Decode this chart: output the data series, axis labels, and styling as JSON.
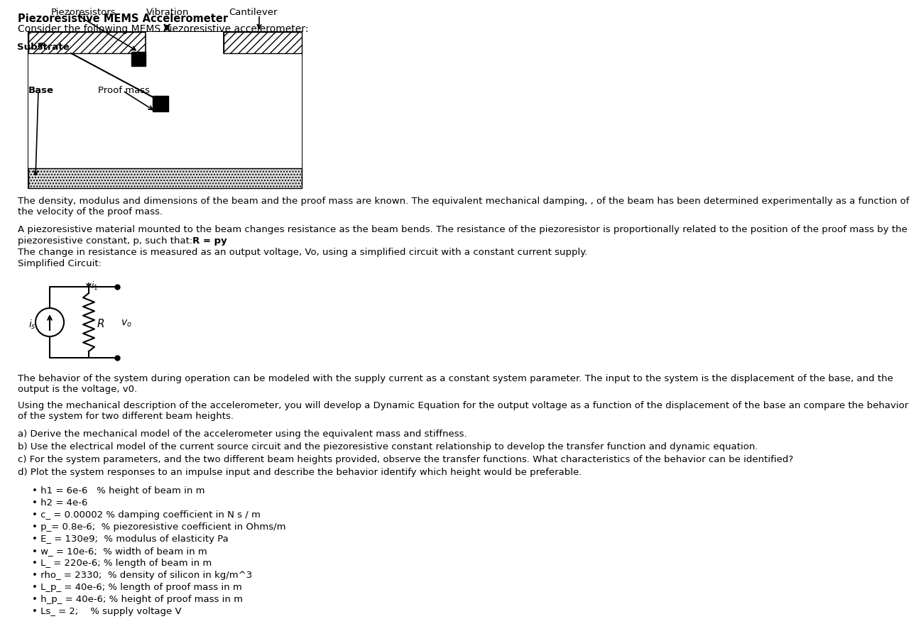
{
  "title": "Piezoresistive MEMS Accelerometer",
  "subtitle": "Consider the following MEMS Piezoresistive accelerometer:",
  "label_piezoresistors": "Piezoresistors",
  "label_vibration": "Vibration",
  "label_cantilever": "Cantilever",
  "label_substrate": "Substrate",
  "label_base": "Base",
  "label_proof_mass": "Proof mass",
  "para1": "The density, modulus and dimensions of the beam and the proof mass are known. The equivalent mechanical damping, , of the beam has been determined experimentally as a function of\nthe velocity of the proof mass.",
  "para2a": "A piezoresistive material mounted to the beam changes resistance as the beam bends. The resistance of the piezoresistor is proportionally related to the position of the proof mass by the",
  "para2b": "piezoresistive constant, p, such that: ",
  "para2bold": "R = py",
  "para3": "The change in resistance is measured as an output voltage, Vo, using a simplified circuit with a constant current supply.",
  "circuit_label": "Simplified Circuit:",
  "para4": "The behavior of the system during operation can be modeled with the supply current as a constant system parameter. The input to the system is the displacement of the base, and the\noutput is the voltage, v0.",
  "para5": "Using the mechanical description of the accelerometer, you will develop a Dynamic Equation for the output voltage as a function of the displacement of the base an compare the behavior\nof the system for two different beam heights.",
  "item_a": "a) Derive the mechanical model of the accelerometer using the equivalent mass and stiffness.",
  "item_b": "b) Use the electrical model of the current source circuit and the piezoresistive constant relationship to develop the transfer function and dynamic equation.",
  "item_c": "c) For the system parameters, and the two different beam heights provided, observe the transfer functions. What characteristics of the behavior can be identified?",
  "item_d": "d) Plot the system responses to an impulse input and describe the behavior identify which height would be preferable.",
  "params": [
    {
      "bullet": "h1 = 6e-6",
      "comment": "   % height of beam in m"
    },
    {
      "bullet": "h2 = 4e-6",
      "comment": ""
    },
    {
      "bullet": "c_ = 0.00002",
      "comment": " % damping coefficient in N s / m"
    },
    {
      "bullet": "p_= 0.8e-6;",
      "comment": "  % piezoresistive coefficient in Ohms/m"
    },
    {
      "bullet": "E_ = 130e9;",
      "comment": "  % modulus of elasticity Pa"
    },
    {
      "bullet": "w_ = 10e-6;",
      "comment": "  % width of beam in m"
    },
    {
      "bullet": "L_ = 220e-6;",
      "comment": " % length of beam in m"
    },
    {
      "bullet": "rho_ = 2330;",
      "comment": "  % density of silicon in kg/m^3"
    },
    {
      "bullet": "L_p_ = 40e-6;",
      "comment": " % length of proof mass in m"
    },
    {
      "bullet": "h_p_ = 40e-6;",
      "comment": " % height of proof mass in m"
    },
    {
      "bullet": "Ls_ = 2;",
      "comment": "    % supply voltage V"
    }
  ],
  "bg_color": "#ffffff",
  "text_color": "#000000"
}
